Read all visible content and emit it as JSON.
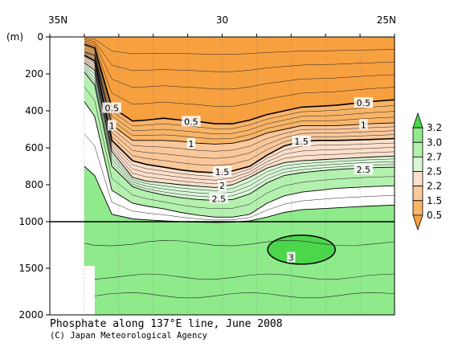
{
  "chart_data": {
    "type": "contour",
    "title": "Phosphate along 137°E line, June 2008",
    "credit": "(C) Japan Meteorological Agency",
    "x_axis": {
      "ticks": [
        "35N",
        "30",
        "25N"
      ],
      "range": [
        35,
        25
      ],
      "unit": "°N"
    },
    "y_axis": {
      "unit_label": "(m)",
      "upper_ticks": [
        "0",
        "200",
        "400",
        "600",
        "800",
        "1000"
      ],
      "lower_ticks": [
        "1500",
        "2000"
      ],
      "upper_range": [
        0,
        1000
      ],
      "lower_range": [
        1000,
        2000
      ]
    },
    "colorbar": {
      "labels": [
        "3.2",
        "3.0",
        "2.7",
        "2.5",
        "2.2",
        "1.5",
        "0.5"
      ],
      "bands": [
        {
          "range": [
            0.0,
            0.5
          ],
          "color": "#f7a040"
        },
        {
          "range": [
            0.5,
            1.5
          ],
          "color": "#f8b467"
        },
        {
          "range": [
            1.5,
            2.2
          ],
          "color": "#fac89a"
        },
        {
          "range": [
            2.2,
            2.5
          ],
          "color": "#fde0cc"
        },
        {
          "range": [
            2.5,
            2.7
          ],
          "color": "#d9f7d6"
        },
        {
          "range": [
            2.7,
            3.0
          ],
          "color": "#b4f0ae"
        },
        {
          "range": [
            3.0,
            3.2
          ],
          "color": "#8eea8a"
        },
        {
          "range": [
            3.2,
            3.5
          ],
          "color": "#4cd64c"
        }
      ]
    },
    "contour_labels": [
      {
        "text": "0.5",
        "lat": 33.2,
        "depth": 385
      },
      {
        "text": "0.5",
        "lat": 30.9,
        "depth": 458
      },
      {
        "text": "0.5",
        "lat": 25.9,
        "depth": 357
      },
      {
        "text": "1",
        "lat": 33.2,
        "depth": 480
      },
      {
        "text": "1",
        "lat": 30.9,
        "depth": 578
      },
      {
        "text": "1",
        "lat": 25.9,
        "depth": 475
      },
      {
        "text": "1.5",
        "lat": 30.0,
        "depth": 730
      },
      {
        "text": "1.5",
        "lat": 27.7,
        "depth": 565
      },
      {
        "text": "2",
        "lat": 30.0,
        "depth": 805
      },
      {
        "text": "2.5",
        "lat": 30.1,
        "depth": 875
      },
      {
        "text": "2.5",
        "lat": 25.9,
        "depth": 718
      },
      {
        "text": "3",
        "lat": 28.0,
        "depth": 1385
      }
    ],
    "data_coverage": {
      "north_limit": "34N",
      "missing_deep_north_of": "33.7N"
    }
  }
}
